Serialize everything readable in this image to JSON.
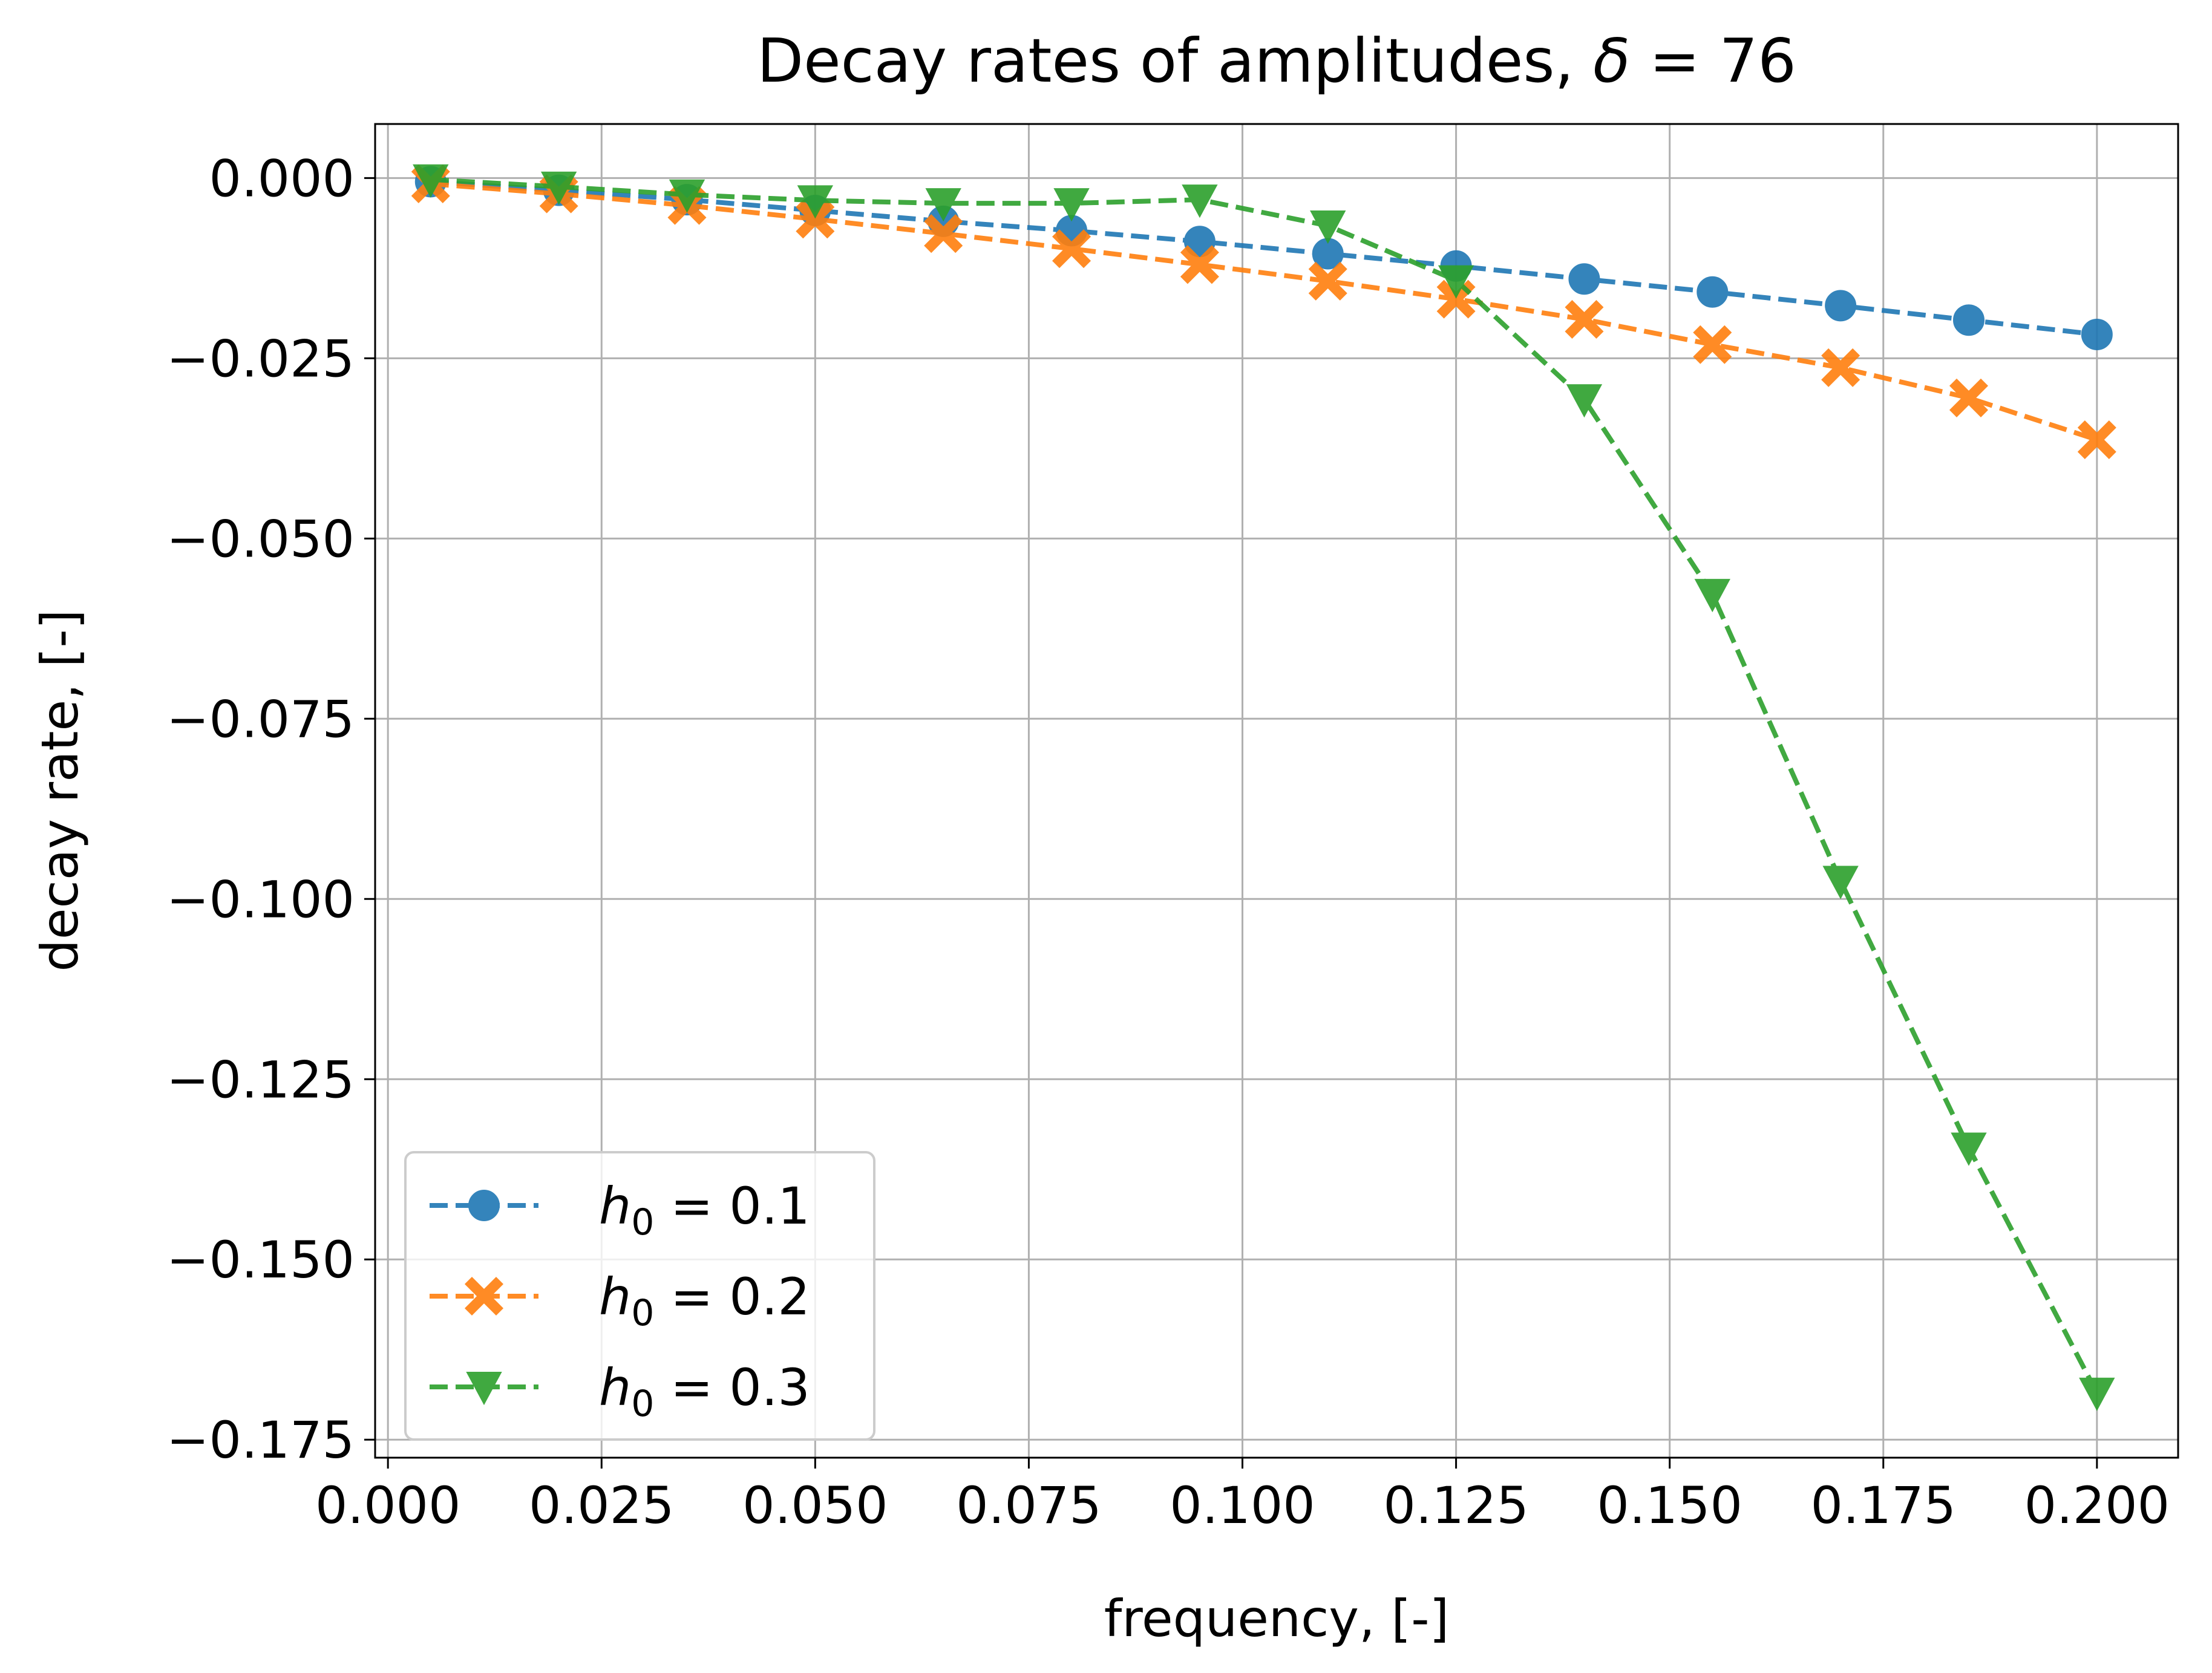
{
  "chart_data": {
    "type": "line",
    "title_prefix": "Decay rates of amplitudes, ",
    "title_symbol": "δ",
    "title_suffix": " = 76",
    "xlabel": "frequency, [-]",
    "ylabel": "decay rate, [-]",
    "xlim": [
      -0.0015,
      0.2095
    ],
    "ylim": [
      -0.1775,
      0.0075
    ],
    "grid": true,
    "legend_position": "lower-left",
    "x_ticks": [
      0.0,
      0.025,
      0.05,
      0.075,
      0.1,
      0.125,
      0.15,
      0.175,
      0.2
    ],
    "x_tick_labels": [
      "0.000",
      "0.025",
      "0.050",
      "0.075",
      "0.100",
      "0.125",
      "0.150",
      "0.175",
      "0.200"
    ],
    "y_ticks": [
      0.0,
      -0.025,
      -0.05,
      -0.075,
      -0.1,
      -0.125,
      -0.15,
      -0.175
    ],
    "y_tick_labels": [
      "0.000",
      "−0.025",
      "−0.050",
      "−0.075",
      "−0.100",
      "−0.125",
      "−0.150",
      "−0.175"
    ],
    "x": [
      0.005,
      0.02,
      0.035,
      0.05,
      0.065,
      0.08,
      0.095,
      0.11,
      0.125,
      0.14,
      0.155,
      0.17,
      0.185,
      0.2
    ],
    "series": [
      {
        "name": "h0 = 0.1",
        "legend_var": "h",
        "legend_sub": "0",
        "legend_value": " = 0.1",
        "color": "#1f77b4",
        "marker": "circle",
        "values": [
          -0.0005,
          -0.0017,
          -0.003,
          -0.0045,
          -0.006,
          -0.0073,
          -0.0088,
          -0.0105,
          -0.0122,
          -0.014,
          -0.0158,
          -0.0177,
          -0.0197,
          -0.0217
        ]
      },
      {
        "name": "h0 = 0.2",
        "legend_var": "h",
        "legend_sub": "0",
        "legend_value": " = 0.2",
        "color": "#ff7f0e",
        "marker": "x",
        "values": [
          -0.0008,
          -0.0022,
          -0.0038,
          -0.0057,
          -0.0077,
          -0.0098,
          -0.012,
          -0.0143,
          -0.0168,
          -0.0196,
          -0.0231,
          -0.0263,
          -0.0305,
          -0.0363
        ]
      },
      {
        "name": "h0 = 0.3",
        "legend_var": "h",
        "legend_sub": "0",
        "legend_value": " = 0.3",
        "color": "#2ca02c",
        "marker": "triangle-down",
        "values": [
          -0.0002,
          -0.0012,
          -0.0023,
          -0.0031,
          -0.0035,
          -0.0035,
          -0.003,
          -0.0066,
          -0.0142,
          -0.0307,
          -0.0577,
          -0.0975,
          -0.1345,
          -0.1685
        ]
      }
    ]
  }
}
